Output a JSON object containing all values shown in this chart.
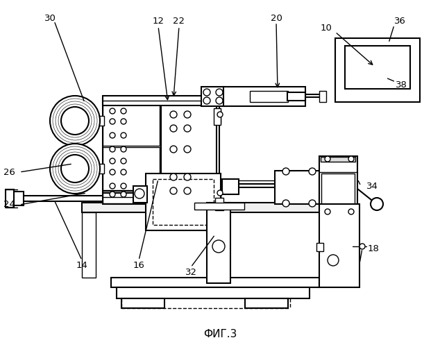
{
  "bg_color": "#ffffff",
  "lc": "#000000",
  "title": "ФИГ.3",
  "figsize": [
    6.34,
    5.0
  ],
  "dpi": 100
}
